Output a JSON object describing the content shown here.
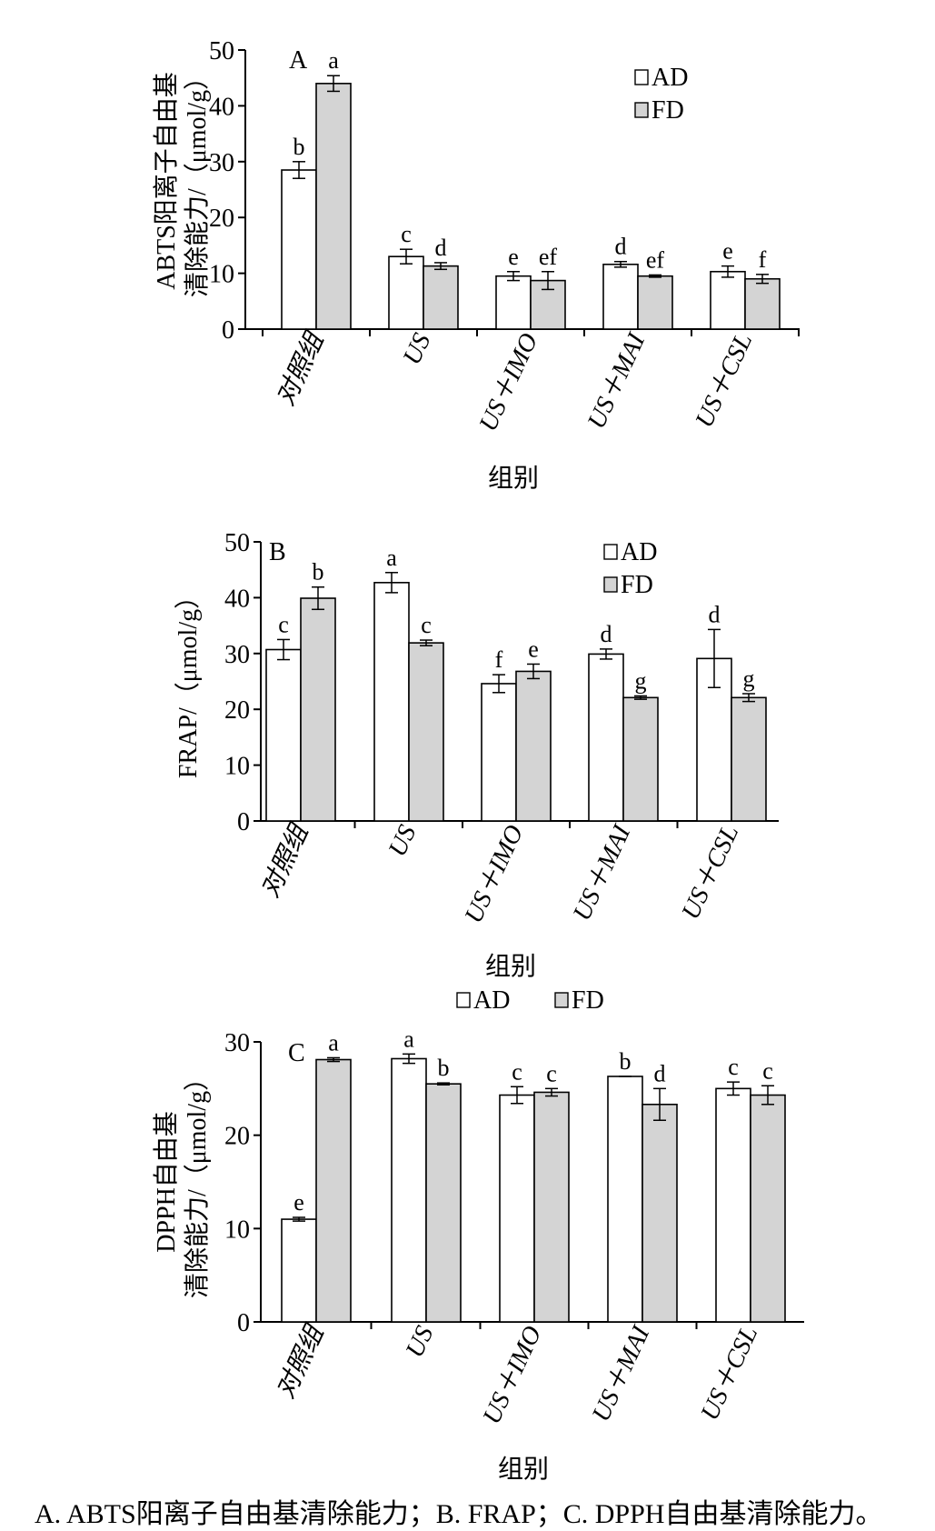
{
  "caption": "A. ABTS阳离子自由基清除能力；B. FRAP；C. DPPH自由基清除能力。",
  "chart_data": [
    {
      "type": "bar",
      "panel_letter": "A",
      "categories": [
        "对照组",
        "US",
        "US＋IMO",
        "US＋MAI",
        "US＋CSL"
      ],
      "series": [
        {
          "name": "AD",
          "color": "#ffffff",
          "values": [
            28.5,
            13.0,
            9.5,
            11.6,
            10.3
          ],
          "errors": [
            1.5,
            1.3,
            0.8,
            0.5,
            1.0
          ],
          "letters": [
            "b",
            "c",
            "e",
            "d",
            "e"
          ]
        },
        {
          "name": "FD",
          "color": "#d4d4d4",
          "values": [
            44.0,
            11.3,
            8.7,
            9.5,
            9.0
          ],
          "errors": [
            1.4,
            0.6,
            1.6,
            0.2,
            0.8
          ],
          "letters": [
            "a",
            "d",
            "ef",
            "ef",
            "f"
          ]
        }
      ],
      "ylabel_lines": [
        "ABTS阳离子自由基",
        "清除能力/（μmol/g）"
      ],
      "xlabel": "组别",
      "ylim": [
        0,
        50
      ],
      "yticks": [
        0,
        10,
        20,
        30,
        40,
        50
      ],
      "legend": "top-right",
      "grid": false
    },
    {
      "type": "bar",
      "panel_letter": "B",
      "categories": [
        "对照组",
        "US",
        "US＋IMO",
        "US＋MAI",
        "US＋CSL"
      ],
      "series": [
        {
          "name": "AD",
          "color": "#ffffff",
          "values": [
            30.7,
            42.7,
            24.6,
            29.9,
            29.1
          ],
          "errors": [
            1.8,
            1.8,
            1.6,
            0.9,
            5.2
          ],
          "letters": [
            "c",
            "a",
            "f",
            "d",
            "d"
          ]
        },
        {
          "name": "FD",
          "color": "#d4d4d4",
          "values": [
            39.9,
            31.9,
            26.8,
            22.1,
            22.1
          ],
          "errors": [
            2.0,
            0.5,
            1.3,
            0.3,
            0.7
          ],
          "letters": [
            "b",
            "c",
            "e",
            "g",
            "g"
          ]
        }
      ],
      "ylabel_lines": [
        "FRAP/（μmol/g）"
      ],
      "xlabel": "组别",
      "ylim": [
        0,
        50
      ],
      "yticks": [
        0,
        10,
        20,
        30,
        40,
        50
      ],
      "legend": "top-right",
      "grid": false
    },
    {
      "type": "bar",
      "panel_letter": "C",
      "categories": [
        "对照组",
        "US",
        "US＋IMO",
        "US＋MAI",
        "US＋CSL"
      ],
      "series": [
        {
          "name": "AD",
          "color": "#ffffff",
          "values": [
            11.0,
            28.2,
            24.3,
            26.3,
            25.0
          ],
          "errors": [
            0.2,
            0.5,
            0.9,
            0.0,
            0.7
          ],
          "letters": [
            "e",
            "a",
            "c",
            "b",
            "c"
          ]
        },
        {
          "name": "FD",
          "color": "#d4d4d4",
          "values": [
            28.1,
            25.5,
            24.6,
            23.3,
            24.3
          ],
          "errors": [
            0.2,
            0.1,
            0.4,
            1.7,
            1.0
          ],
          "letters": [
            "a",
            "b",
            "c",
            "d",
            "c"
          ]
        }
      ],
      "ylabel_lines": [
        "DPPH自由基",
        "清除能力/（μmol/g）"
      ],
      "xlabel": "组别",
      "ylim": [
        0,
        30
      ],
      "yticks": [
        0,
        10,
        20,
        30
      ],
      "legend": "top",
      "grid": false
    }
  ]
}
